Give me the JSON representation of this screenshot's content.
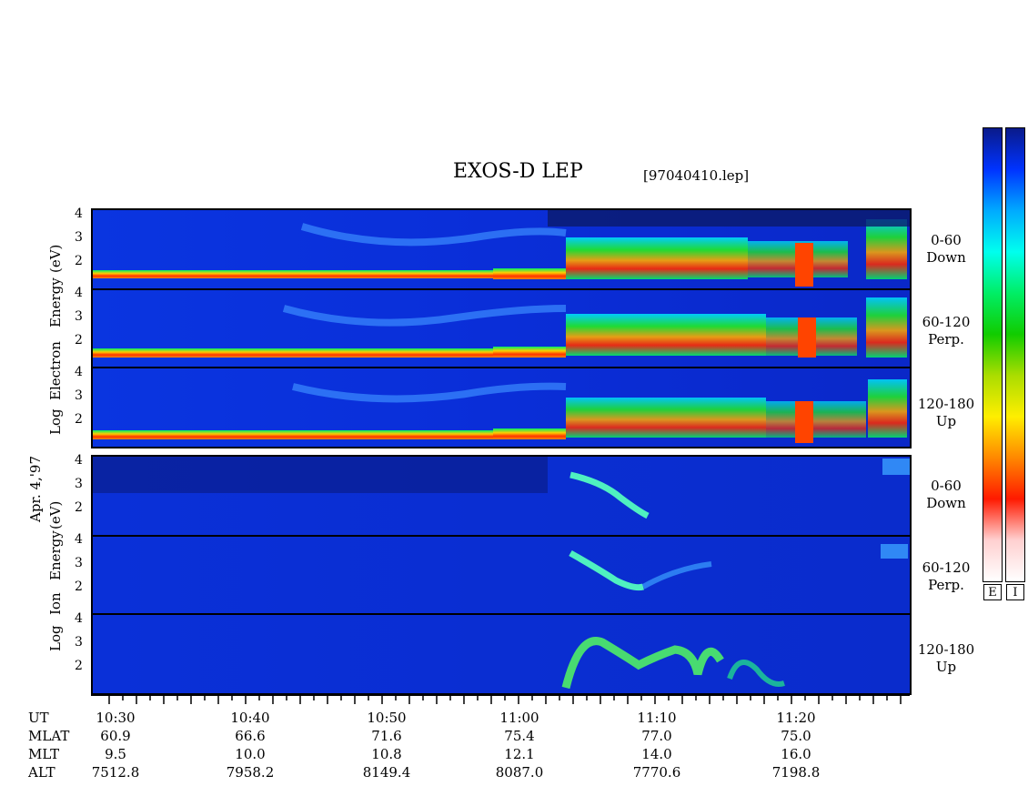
{
  "header": {
    "title": "EXOS-D LEP",
    "filename": "[97040410.lep]"
  },
  "colorbar": {
    "colors": [
      "#0a1a8a",
      "#0033ff",
      "#00aaff",
      "#00ffee",
      "#00ee66",
      "#11cc00",
      "#aadd00",
      "#ffee00",
      "#ff8800",
      "#ff1a00",
      "#ffd0d0",
      "#ffffff"
    ],
    "labels": {
      "electron": "E",
      "ion": "I"
    }
  },
  "electron_block": {
    "ylabels": [
      "Log",
      "Electron",
      "Energy",
      "(eV)"
    ],
    "panels": [
      {
        "angle": "0-60",
        "dir": "Down",
        "ticks": [
          "4",
          "3",
          "2"
        ]
      },
      {
        "angle": "60-120",
        "dir": "Perp.",
        "ticks": [
          "4",
          "3",
          "2"
        ]
      },
      {
        "angle": "120-180",
        "dir": "Up",
        "ticks": [
          "4",
          "3",
          "2"
        ]
      }
    ]
  },
  "ion_block": {
    "ylabels": [
      "Log",
      "Ion",
      "Energy",
      "(eV)"
    ],
    "panels": [
      {
        "angle": "0-60",
        "dir": "Down",
        "ticks": [
          "4",
          "3",
          "2"
        ]
      },
      {
        "angle": "60-120",
        "dir": "Perp.",
        "ticks": [
          "4",
          "3",
          "2"
        ]
      },
      {
        "angle": "120-180",
        "dir": "Up",
        "ticks": [
          "4",
          "3",
          "2"
        ]
      }
    ]
  },
  "date_label": "Apr. 4,'97",
  "ephemeris": {
    "rows": [
      {
        "label": "UT",
        "values": [
          "10:30",
          "10:40",
          "10:50",
          "11:00",
          "11:10",
          "11:20"
        ]
      },
      {
        "label": "MLAT",
        "values": [
          "60.9",
          "66.6",
          "71.6",
          "75.4",
          "77.0",
          "75.0"
        ]
      },
      {
        "label": "MLT",
        "values": [
          "9.5",
          "10.0",
          "10.8",
          "12.1",
          "14.0",
          "16.0"
        ]
      },
      {
        "label": "ALT",
        "values": [
          "7512.8",
          "7958.2",
          "8149.4",
          "8087.0",
          "7770.6",
          "7198.8"
        ]
      }
    ]
  },
  "chart_data": {
    "type": "heatmap",
    "title": "EXOS-D LEP",
    "xlabel": "UT",
    "ylabel": "Log Energy (eV)",
    "x_ticks": [
      "10:30",
      "10:40",
      "10:50",
      "11:00",
      "11:10",
      "11:20"
    ],
    "ylim": [
      1,
      4.2
    ],
    "y_ticks": [
      2,
      3,
      4
    ],
    "series": [
      {
        "name": "Electron 0-60 Down"
      },
      {
        "name": "Electron 60-120 Perp."
      },
      {
        "name": "Electron 120-180 Up"
      },
      {
        "name": "Ion 0-60 Down"
      },
      {
        "name": "Ion 60-120 Perp."
      },
      {
        "name": "Ion 120-180 Up"
      }
    ]
  }
}
